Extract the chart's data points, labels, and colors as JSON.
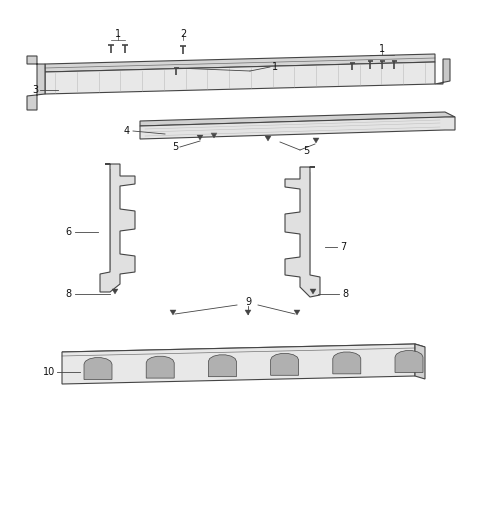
{
  "background_color": "#ffffff",
  "line_color": "#444444",
  "label_color": "#111111",
  "fig_w": 4.8,
  "fig_h": 5.12,
  "dpi": 100,
  "label_fs": 7,
  "bolt_color": "#333333",
  "part_fill": "#e0e0e0",
  "part_fill2": "#c8c8c8",
  "part_edge": "#444444"
}
